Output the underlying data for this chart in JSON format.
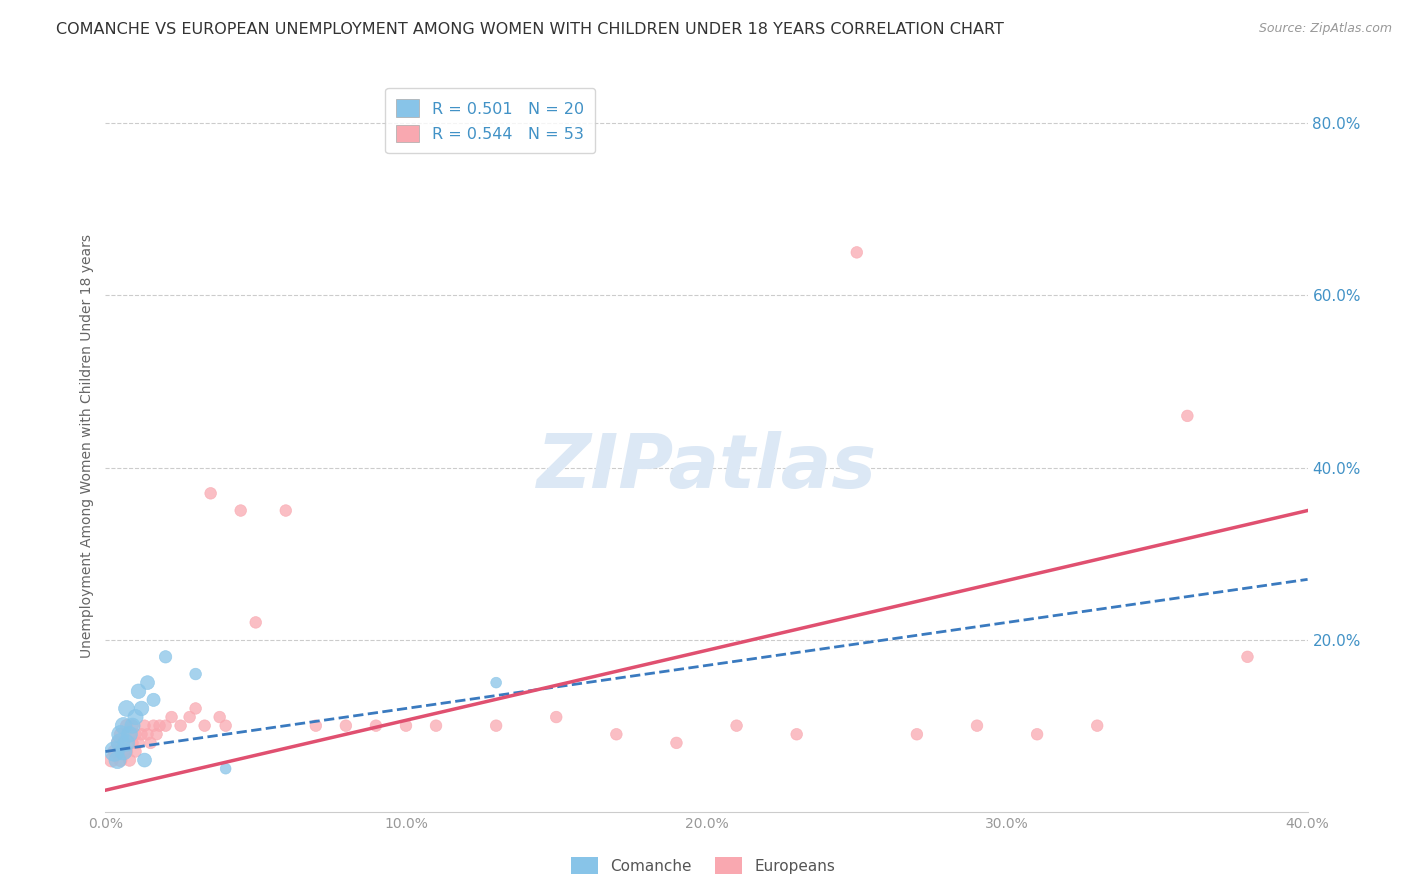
{
  "title": "COMANCHE VS EUROPEAN UNEMPLOYMENT AMONG WOMEN WITH CHILDREN UNDER 18 YEARS CORRELATION CHART",
  "source": "Source: ZipAtlas.com",
  "ylabel": "Unemployment Among Women with Children Under 18 years",
  "xlim": [
    0.0,
    0.4
  ],
  "ylim": [
    0.0,
    0.85
  ],
  "xtick_labels": [
    "0.0%",
    "10.0%",
    "20.0%",
    "30.0%",
    "40.0%"
  ],
  "xtick_vals": [
    0.0,
    0.1,
    0.2,
    0.3,
    0.4
  ],
  "right_ytick_labels": [
    "20.0%",
    "40.0%",
    "60.0%",
    "80.0%"
  ],
  "right_ytick_vals": [
    0.2,
    0.4,
    0.6,
    0.8
  ],
  "grid_ytick_vals": [
    0.2,
    0.4,
    0.6,
    0.8
  ],
  "comanche_color": "#88c4e8",
  "european_color": "#f9a8b0",
  "comanche_line_color": "#3a7abf",
  "european_line_color": "#e05070",
  "comanche_R": 0.501,
  "comanche_N": 20,
  "european_R": 0.544,
  "european_N": 53,
  "legend_label_color": "#4292c6",
  "watermark": "ZIPatlas",
  "watermark_color": "#dce8f5",
  "comanche_x": [
    0.003,
    0.004,
    0.005,
    0.005,
    0.006,
    0.006,
    0.007,
    0.007,
    0.008,
    0.009,
    0.01,
    0.011,
    0.012,
    0.013,
    0.014,
    0.016,
    0.02,
    0.03,
    0.04,
    0.13
  ],
  "comanche_y": [
    0.07,
    0.06,
    0.08,
    0.09,
    0.07,
    0.1,
    0.08,
    0.12,
    0.09,
    0.1,
    0.11,
    0.14,
    0.12,
    0.06,
    0.15,
    0.13,
    0.18,
    0.16,
    0.05,
    0.15
  ],
  "comanche_size": [
    200,
    150,
    180,
    160,
    150,
    140,
    140,
    130,
    130,
    120,
    120,
    110,
    110,
    100,
    100,
    90,
    80,
    70,
    60,
    60
  ],
  "european_x": [
    0.002,
    0.003,
    0.004,
    0.005,
    0.005,
    0.006,
    0.006,
    0.007,
    0.007,
    0.008,
    0.008,
    0.009,
    0.009,
    0.01,
    0.01,
    0.011,
    0.012,
    0.013,
    0.014,
    0.015,
    0.016,
    0.017,
    0.018,
    0.02,
    0.022,
    0.025,
    0.028,
    0.03,
    0.033,
    0.035,
    0.038,
    0.04,
    0.045,
    0.05,
    0.06,
    0.07,
    0.08,
    0.09,
    0.1,
    0.11,
    0.13,
    0.15,
    0.17,
    0.19,
    0.21,
    0.23,
    0.25,
    0.27,
    0.29,
    0.31,
    0.33,
    0.36,
    0.38
  ],
  "european_y": [
    0.06,
    0.07,
    0.08,
    0.06,
    0.09,
    0.07,
    0.08,
    0.07,
    0.1,
    0.06,
    0.09,
    0.08,
    0.1,
    0.07,
    0.09,
    0.08,
    0.09,
    0.1,
    0.09,
    0.08,
    0.1,
    0.09,
    0.1,
    0.1,
    0.11,
    0.1,
    0.11,
    0.12,
    0.1,
    0.37,
    0.11,
    0.1,
    0.35,
    0.22,
    0.35,
    0.1,
    0.1,
    0.1,
    0.1,
    0.1,
    0.1,
    0.11,
    0.09,
    0.08,
    0.1,
    0.09,
    0.65,
    0.09,
    0.1,
    0.09,
    0.1,
    0.46,
    0.18
  ],
  "european_size": [
    100,
    90,
    80,
    90,
    80,
    90,
    80,
    80,
    80,
    80,
    80,
    70,
    70,
    70,
    70,
    70,
    70,
    70,
    70,
    70,
    70,
    70,
    70,
    70,
    70,
    70,
    70,
    70,
    70,
    70,
    70,
    70,
    70,
    70,
    70,
    70,
    70,
    70,
    70,
    70,
    70,
    70,
    70,
    70,
    70,
    70,
    70,
    70,
    70,
    70,
    70,
    70,
    70
  ],
  "background_color": "#ffffff",
  "grid_color": "#cccccc"
}
